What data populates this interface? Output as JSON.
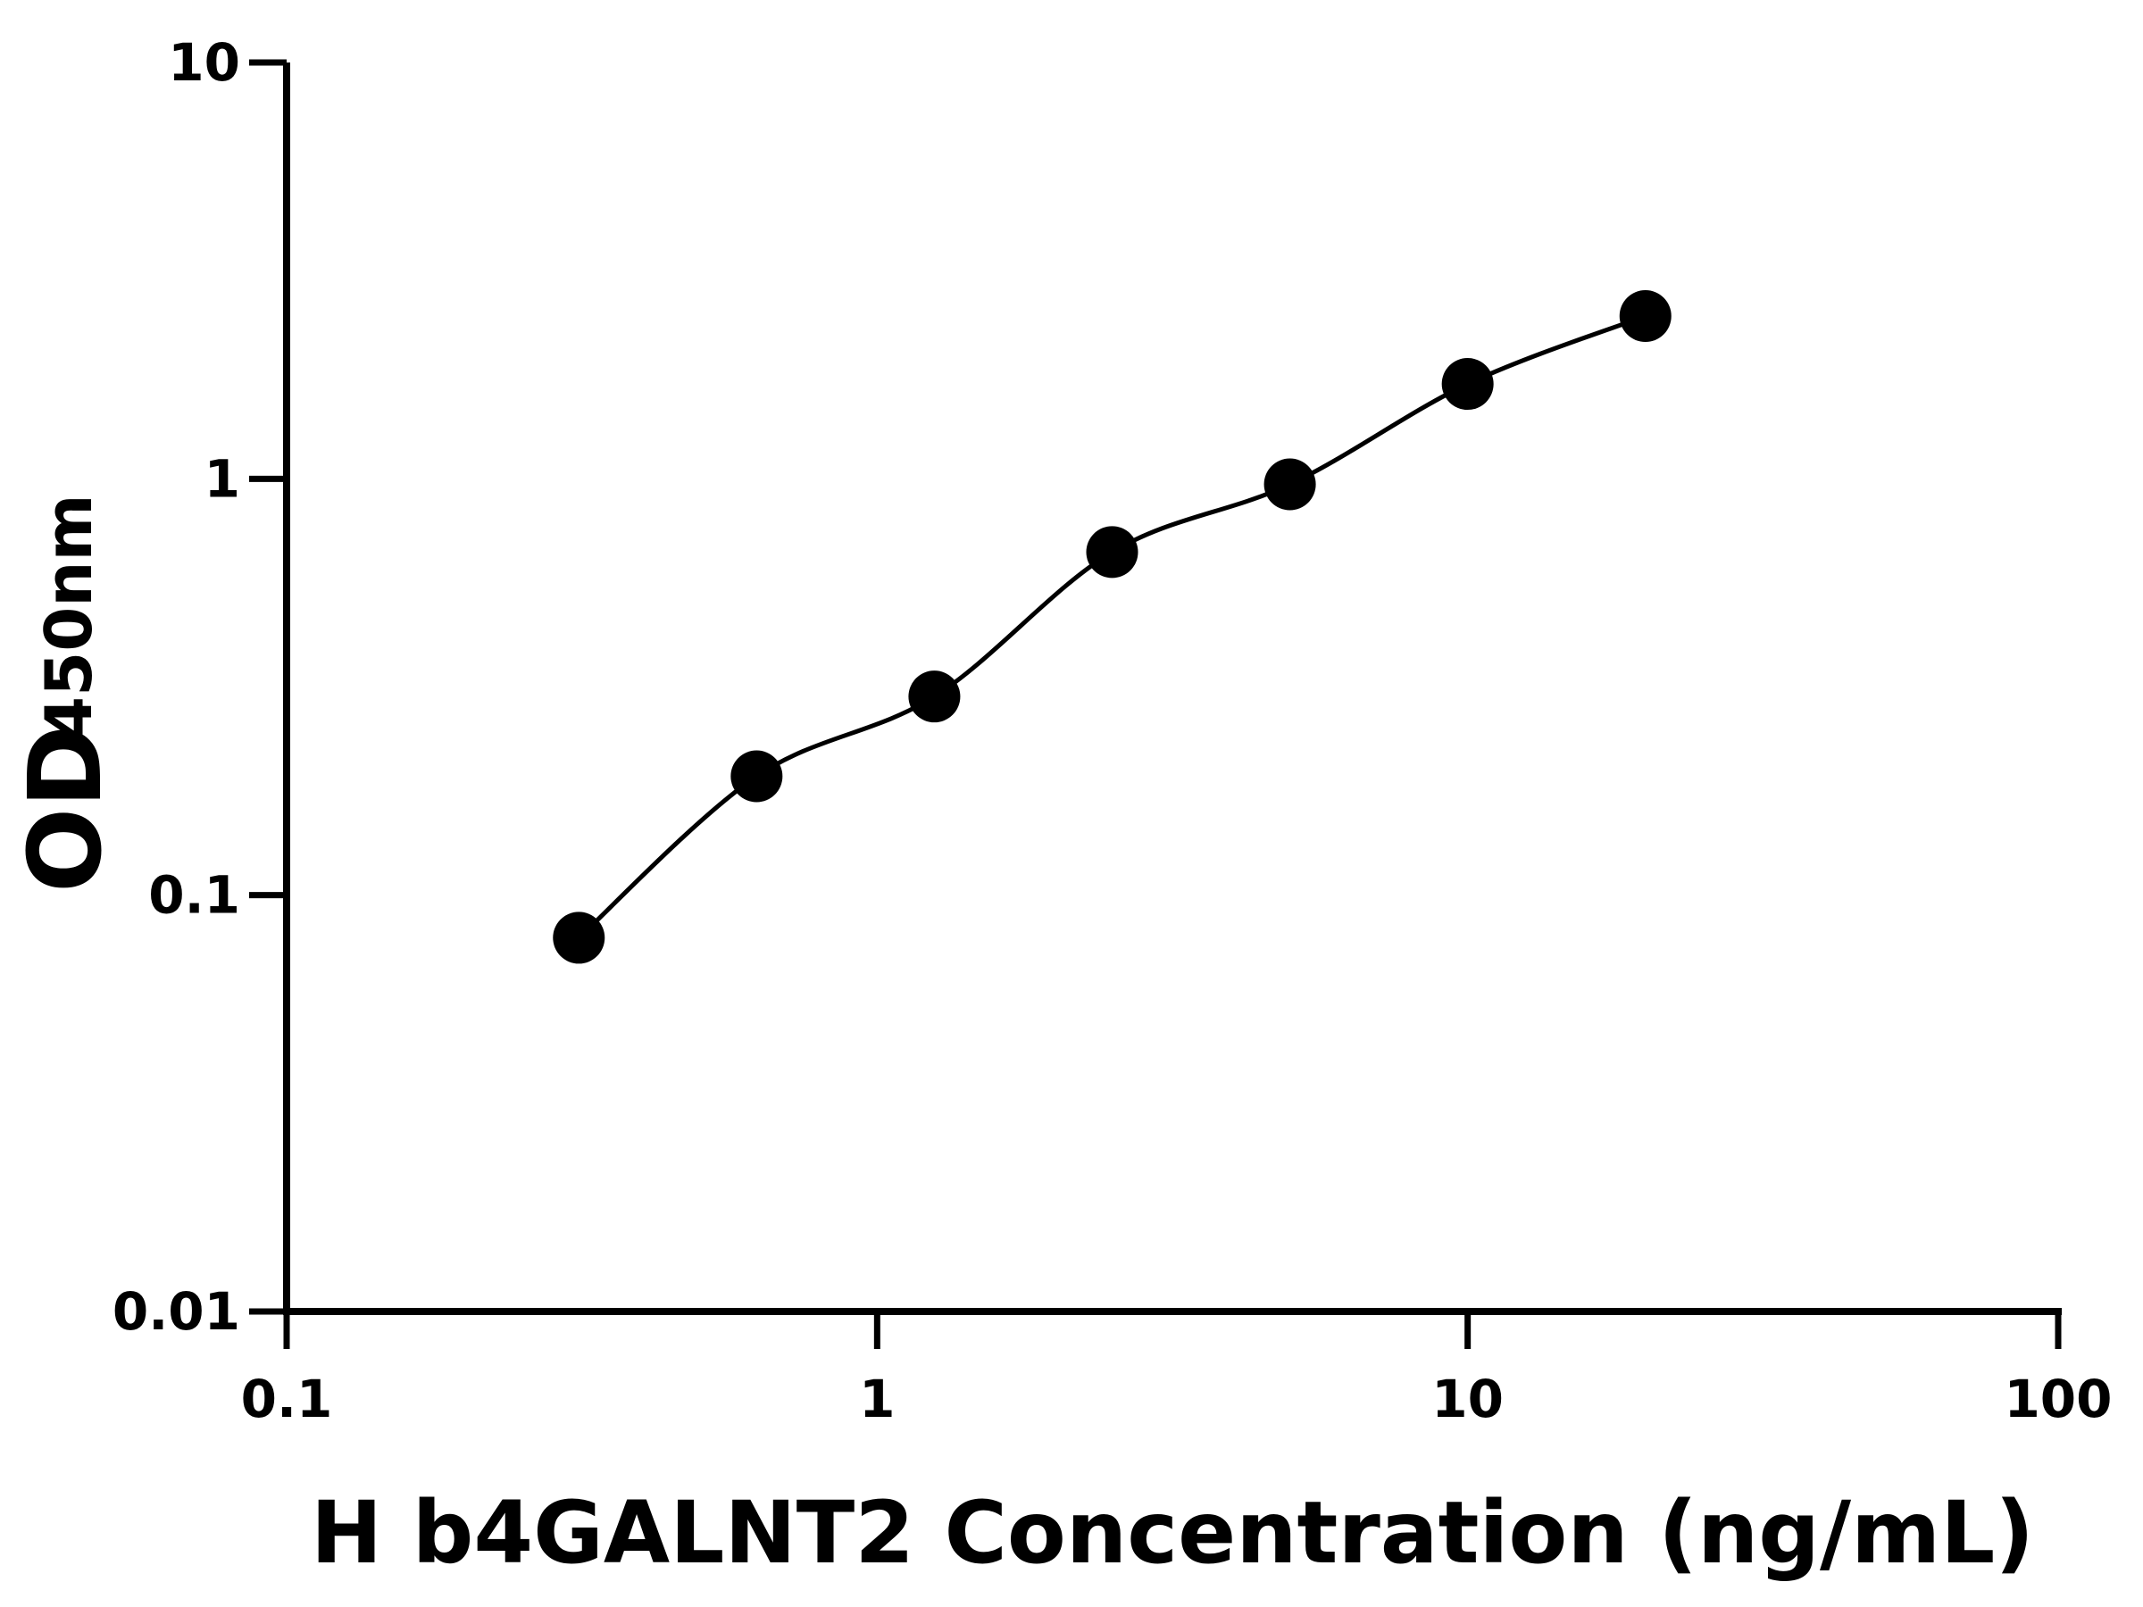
{
  "chart_data": {
    "type": "scatter",
    "x_label": "H b4GALNT2 Concentration (ng/mL)",
    "y_label": "OD",
    "y_label_subscript": "450nm",
    "x": [
      0.3125,
      0.625,
      1.25,
      2.5,
      5,
      10,
      20
    ],
    "values": [
      0.079,
      0.193,
      0.3,
      0.667,
      0.97,
      1.69,
      2.46
    ],
    "color": "#000000",
    "xscale": "log",
    "yscale": "log",
    "xlim": [
      0.1,
      100
    ],
    "ylim": [
      0.01,
      10
    ],
    "xticks": [
      0.1,
      1,
      10,
      100
    ],
    "yticks": [
      0.01,
      0.1,
      1,
      10
    ],
    "fit_curve": true
  }
}
